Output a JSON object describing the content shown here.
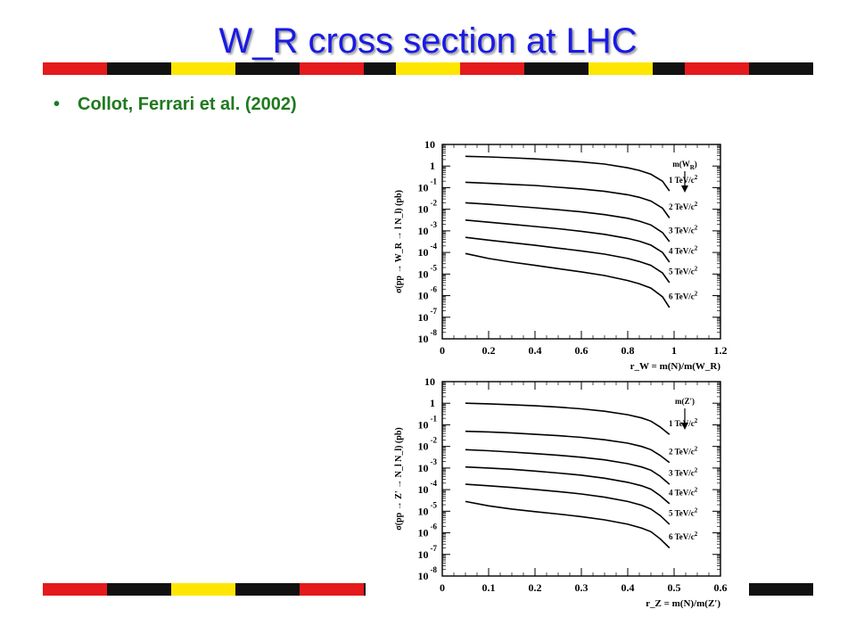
{
  "slide": {
    "title": "W_R cross section at LHC",
    "bullet": "Collot, Ferrari et al. (2002)"
  },
  "colors": {
    "title": "#1a1ae6",
    "bullet": "#1f7a1f",
    "stripe_red": "#e41a1c",
    "stripe_black": "#111111",
    "stripe_yellow": "#ffe600",
    "stripe_white": "#ffffff"
  },
  "stripe_pattern": [
    "red",
    "red",
    "black",
    "black",
    "yellow",
    "yellow",
    "black",
    "black",
    "red",
    "red",
    "black",
    "yellow",
    "yellow",
    "red",
    "red",
    "black",
    "black",
    "yellow",
    "yellow",
    "black",
    "red",
    "red",
    "black",
    "black"
  ],
  "chart_data": [
    {
      "type": "line",
      "ylabel": "σ(pp → W_R → l N_l) (pb)",
      "xlabel": "r_W = m(N)/m(W_R)",
      "xlim": [
        0,
        1.2
      ],
      "ylim": [
        -8,
        1
      ],
      "y_scale": "log",
      "x_ticks": [
        "0",
        "0.2",
        "0.4",
        "0.6",
        "0.8",
        "1",
        "1.2"
      ],
      "y_ticks": [
        {
          "exp": 1,
          "label": "10",
          "sup": ""
        },
        {
          "exp": 0,
          "label": "1",
          "sup": ""
        },
        {
          "exp": -1,
          "label": "10",
          "sup": "-1"
        },
        {
          "exp": -2,
          "label": "10",
          "sup": "-2"
        },
        {
          "exp": -3,
          "label": "10",
          "sup": "-3"
        },
        {
          "exp": -4,
          "label": "10",
          "sup": "-4"
        },
        {
          "exp": -5,
          "label": "10",
          "sup": "-5"
        },
        {
          "exp": -6,
          "label": "10",
          "sup": "-6"
        },
        {
          "exp": -7,
          "label": "10",
          "sup": "-7"
        },
        {
          "exp": -8,
          "label": "10",
          "sup": "-8"
        }
      ],
      "legend_header": "m(W_R)",
      "legend_header_main": "m(W",
      "legend_header_sub": "R",
      "legend_header_end": ")",
      "x": [
        0.1,
        0.2,
        0.3,
        0.4,
        0.5,
        0.6,
        0.7,
        0.8,
        0.85,
        0.9,
        0.95,
        0.98
      ],
      "series": [
        {
          "name": "1 TeV/c²",
          "label_main": "1 TeV/c",
          "label_sup": "2",
          "values": [
            0.45,
            0.42,
            0.38,
            0.33,
            0.27,
            0.19,
            0.09,
            -0.08,
            -0.2,
            -0.38,
            -0.7,
            -1.15
          ]
        },
        {
          "name": "2 TeV/c²",
          "label_main": "2 TeV/c",
          "label_sup": "2",
          "values": [
            -0.75,
            -0.8,
            -0.85,
            -0.9,
            -0.98,
            -1.06,
            -1.17,
            -1.33,
            -1.45,
            -1.62,
            -1.95,
            -2.4
          ]
        },
        {
          "name": "3 TeV/c²",
          "label_main": "3 TeV/c",
          "label_sup": "2",
          "values": [
            -1.7,
            -1.77,
            -1.85,
            -1.93,
            -2.02,
            -2.12,
            -2.25,
            -2.42,
            -2.55,
            -2.73,
            -3.08,
            -3.5
          ]
        },
        {
          "name": "4 TeV/c²",
          "label_main": "4 TeV/c",
          "label_sup": "2",
          "values": [
            -2.5,
            -2.6,
            -2.7,
            -2.8,
            -2.9,
            -3.02,
            -3.16,
            -3.35,
            -3.48,
            -3.66,
            -4.0,
            -4.45
          ]
        },
        {
          "name": "5 TeV/c²",
          "label_main": "5 TeV/c",
          "label_sup": "2",
          "values": [
            -3.3,
            -3.43,
            -3.55,
            -3.67,
            -3.8,
            -3.93,
            -4.08,
            -4.28,
            -4.42,
            -4.6,
            -4.95,
            -5.4
          ]
        },
        {
          "name": "6 TeV/c²",
          "label_main": "6 TeV/c",
          "label_sup": "2",
          "values": [
            -4.05,
            -4.28,
            -4.45,
            -4.6,
            -4.75,
            -4.9,
            -5.07,
            -5.3,
            -5.45,
            -5.65,
            -6.05,
            -6.55
          ]
        }
      ]
    },
    {
      "type": "line",
      "ylabel": "σ(pp → Z' → N_l N_l) (pb)",
      "xlabel": "r_Z = m(N)/m(Z')",
      "xlim": [
        0,
        0.6
      ],
      "ylim": [
        -8,
        1
      ],
      "y_scale": "log",
      "x_ticks": [
        "0",
        "0.1",
        "0.2",
        "0.3",
        "0.4",
        "0.5",
        "0.6"
      ],
      "y_ticks": [
        {
          "exp": 1,
          "label": "10",
          "sup": ""
        },
        {
          "exp": 0,
          "label": "1",
          "sup": ""
        },
        {
          "exp": -1,
          "label": "10",
          "sup": "-1"
        },
        {
          "exp": -2,
          "label": "10",
          "sup": "-2"
        },
        {
          "exp": -3,
          "label": "10",
          "sup": "-3"
        },
        {
          "exp": -4,
          "label": "10",
          "sup": "-4"
        },
        {
          "exp": -5,
          "label": "10",
          "sup": "-5"
        },
        {
          "exp": -6,
          "label": "10",
          "sup": "-6"
        },
        {
          "exp": -7,
          "label": "10",
          "sup": "-7"
        },
        {
          "exp": -8,
          "label": "10",
          "sup": "-8"
        }
      ],
      "legend_header": "m(Z')",
      "legend_header_main": "m(Z')",
      "legend_header_sub": "",
      "legend_header_end": "",
      "x": [
        0.05,
        0.1,
        0.15,
        0.2,
        0.25,
        0.3,
        0.35,
        0.4,
        0.43,
        0.45,
        0.47,
        0.49
      ],
      "series": [
        {
          "name": "1 TeV/c²",
          "label_main": "1 TeV/c",
          "label_sup": "2",
          "values": [
            0.0,
            -0.03,
            -0.07,
            -0.12,
            -0.18,
            -0.26,
            -0.37,
            -0.53,
            -0.68,
            -0.83,
            -1.1,
            -1.45
          ]
        },
        {
          "name": "2 TeV/c²",
          "label_main": "2 TeV/c",
          "label_sup": "2",
          "values": [
            -1.3,
            -1.33,
            -1.38,
            -1.44,
            -1.5,
            -1.58,
            -1.69,
            -1.85,
            -2.0,
            -2.15,
            -2.42,
            -2.75
          ]
        },
        {
          "name": "3 TeV/c²",
          "label_main": "3 TeV/c",
          "label_sup": "2",
          "values": [
            -2.15,
            -2.2,
            -2.26,
            -2.33,
            -2.41,
            -2.5,
            -2.62,
            -2.8,
            -2.95,
            -3.1,
            -3.38,
            -3.75
          ]
        },
        {
          "name": "4 TeV/c²",
          "label_main": "4 TeV/c",
          "label_sup": "2",
          "values": [
            -2.95,
            -3.0,
            -3.06,
            -3.14,
            -3.23,
            -3.33,
            -3.47,
            -3.66,
            -3.82,
            -3.98,
            -4.28,
            -4.65
          ]
        },
        {
          "name": "5 TeV/c²",
          "label_main": "5 TeV/c",
          "label_sup": "2",
          "values": [
            -3.75,
            -3.82,
            -3.9,
            -3.99,
            -4.09,
            -4.2,
            -4.35,
            -4.55,
            -4.72,
            -4.9,
            -5.2,
            -5.6
          ]
        },
        {
          "name": "6 TeV/c²",
          "label_main": "6 TeV/c",
          "label_sup": "2",
          "values": [
            -4.55,
            -4.75,
            -4.9,
            -5.02,
            -5.13,
            -5.25,
            -5.4,
            -5.6,
            -5.78,
            -5.95,
            -6.28,
            -6.7
          ]
        }
      ]
    }
  ]
}
